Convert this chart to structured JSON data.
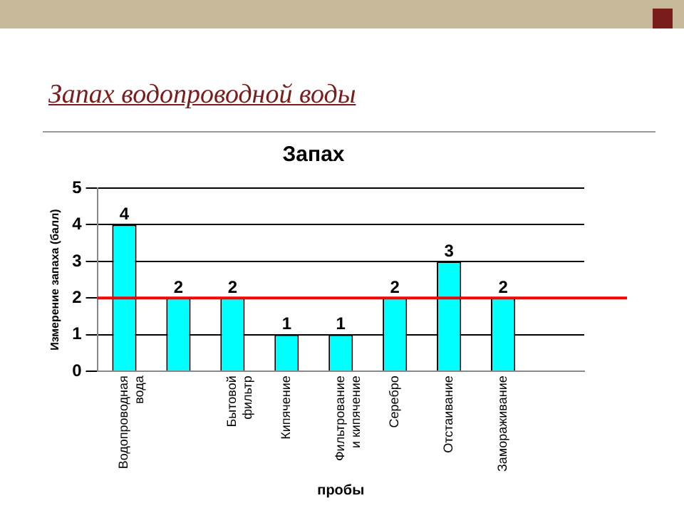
{
  "chart_data": {
    "type": "bar",
    "title": "Запах водопроводной воды",
    "subtitle": "Запах",
    "xlabel": "пробы",
    "ylabel": "Измерение запаха (балл)",
    "categories": [
      "Водопроводная вода",
      null,
      "Бытовой фильтр",
      "Кипячение",
      "Фильтрование и кипячение",
      "Серебро",
      "Отстаивание",
      "Замораживание",
      null
    ],
    "values": [
      4,
      2,
      2,
      1,
      1,
      2,
      3,
      2,
      null
    ],
    "color": "#00ffff",
    "ylim": [
      0,
      5
    ],
    "yticks": [
      0,
      1,
      2,
      3,
      4,
      5
    ],
    "grid": "y",
    "legend": false,
    "data_labels": true,
    "ref_lines": [
      {
        "axis": "y",
        "value": 2,
        "color": "#ff0000"
      }
    ]
  }
}
